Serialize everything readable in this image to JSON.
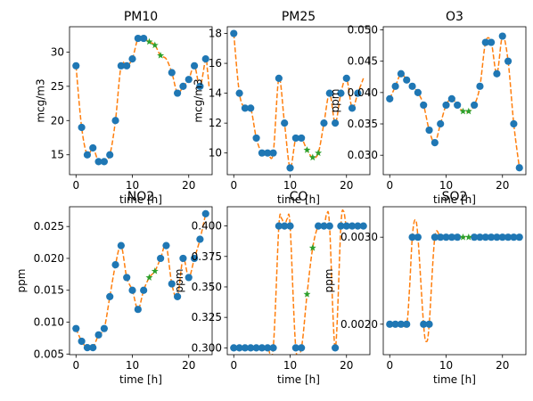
{
  "figure": {
    "layout": "2x3 grid of subplots"
  },
  "style": {
    "observed_color": "#1f77b4",
    "interp_color": "#ff7f0e",
    "imputed_color": "#2ca02c"
  },
  "chart_data": [
    {
      "type": "scatter",
      "title": "PM10",
      "xlabel": "time [h]",
      "ylabel": "mcg/m3",
      "xlim": [
        -1.15,
        24.15
      ],
      "ylim": [
        12.1,
        33.7
      ],
      "xticks": [
        0,
        10,
        20
      ],
      "yticks": [
        15,
        20,
        25,
        30
      ],
      "ytick_labels": [
        "15",
        "20",
        "25",
        "30"
      ],
      "observed": {
        "x": [
          0,
          1,
          2,
          3,
          4,
          5,
          6,
          7,
          8,
          9,
          10,
          11,
          12,
          17,
          18,
          19,
          20,
          21,
          22,
          23
        ],
        "y": [
          28,
          19,
          15,
          16,
          14,
          14,
          15,
          20,
          28,
          28,
          29,
          32,
          32,
          27,
          24,
          25,
          26,
          28,
          25,
          29
        ]
      },
      "imputed": {
        "x": [
          13,
          14,
          15
        ],
        "y": [
          31.5,
          31,
          29.5
        ]
      },
      "interpolated": {
        "x": [
          0,
          1,
          2,
          3,
          4,
          5,
          6,
          7,
          8,
          9,
          10,
          11,
          12,
          13,
          14,
          15,
          16,
          17,
          18,
          19,
          20,
          21,
          22,
          23,
          23.3,
          23.6
        ],
        "y": [
          28,
          19,
          15,
          16,
          14,
          14,
          15,
          20,
          28,
          28,
          29,
          32,
          32,
          31.5,
          31,
          29.5,
          29,
          27,
          24,
          25,
          26,
          28,
          25,
          29,
          27.5,
          25
        ]
      }
    },
    {
      "type": "scatter",
      "title": "PM25",
      "xlabel": "time [h]",
      "ylabel": "mcg/m3",
      "xlim": [
        -1.15,
        24.15
      ],
      "ylim": [
        8.55,
        18.45
      ],
      "xticks": [
        0,
        10,
        20
      ],
      "yticks": [
        10,
        12,
        14,
        16,
        18
      ],
      "ytick_labels": [
        "10",
        "12",
        "14",
        "16",
        "18"
      ],
      "observed": {
        "x": [
          0,
          1,
          2,
          3,
          4,
          5,
          6,
          7,
          8,
          9,
          10,
          11,
          12,
          16,
          17,
          18,
          19,
          20,
          21,
          22
        ],
        "y": [
          18,
          14,
          13,
          13,
          11,
          10,
          10,
          10,
          15,
          12,
          9,
          11,
          11,
          12,
          14,
          12,
          14,
          15,
          13,
          14
        ]
      },
      "imputed": {
        "x": [
          13,
          14,
          15
        ],
        "y": [
          10.2,
          9.7,
          10
        ]
      },
      "interpolated": {
        "x": [
          0,
          1,
          2,
          3,
          4,
          5,
          6,
          7,
          8,
          9,
          10,
          11,
          12,
          13,
          14,
          15,
          16,
          17,
          18,
          19,
          20,
          21,
          22,
          23
        ],
        "y": [
          18,
          14,
          13,
          13,
          11,
          10,
          10,
          10,
          15,
          12,
          9,
          11,
          11,
          10.2,
          9.7,
          10,
          12,
          14,
          12,
          14,
          15,
          13,
          14,
          15
        ]
      }
    },
    {
      "type": "scatter",
      "title": "O3",
      "xlabel": "time [h]",
      "ylabel": "ppm",
      "xlim": [
        -1.15,
        24.15
      ],
      "ylim": [
        0.0269,
        0.0505
      ],
      "xticks": [
        0,
        10,
        20
      ],
      "yticks": [
        0.03,
        0.035,
        0.04,
        0.045,
        0.05
      ],
      "ytick_labels": [
        "0.030",
        "0.035",
        "0.040",
        "0.045",
        "0.050"
      ],
      "observed": {
        "x": [
          0,
          1,
          2,
          3,
          4,
          5,
          6,
          7,
          8,
          9,
          10,
          11,
          12,
          15,
          16,
          17,
          18,
          19,
          20,
          21,
          22,
          23
        ],
        "y": [
          0.039,
          0.041,
          0.043,
          0.042,
          0.041,
          0.04,
          0.038,
          0.034,
          0.032,
          0.035,
          0.038,
          0.039,
          0.038,
          0.038,
          0.041,
          0.048,
          0.048,
          0.043,
          0.049,
          0.045,
          0.035,
          0.028
        ]
      },
      "imputed": {
        "x": [
          13,
          14
        ],
        "y": [
          0.037,
          0.037
        ]
      },
      "interpolated": {
        "x": [
          0,
          1,
          2,
          3,
          4,
          5,
          6,
          7,
          8,
          9,
          10,
          11,
          12,
          13,
          14,
          15,
          16,
          17,
          18,
          19,
          20,
          21,
          22,
          23
        ],
        "y": [
          0.039,
          0.041,
          0.043,
          0.042,
          0.041,
          0.04,
          0.038,
          0.034,
          0.032,
          0.035,
          0.038,
          0.039,
          0.038,
          0.037,
          0.037,
          0.038,
          0.041,
          0.048,
          0.048,
          0.043,
          0.049,
          0.045,
          0.035,
          0.028
        ]
      }
    },
    {
      "type": "scatter",
      "title": "NO2",
      "xlabel": "time [h]",
      "ylabel": "ppm",
      "xlim": [
        -1.15,
        24.15
      ],
      "ylim": [
        0.0049,
        0.0281
      ],
      "xticks": [
        0,
        10,
        20
      ],
      "yticks": [
        0.005,
        0.01,
        0.015,
        0.02,
        0.025
      ],
      "ytick_labels": [
        "0.005",
        "0.010",
        "0.015",
        "0.020",
        "0.025"
      ],
      "observed": {
        "x": [
          0,
          1,
          2,
          3,
          4,
          5,
          6,
          7,
          8,
          9,
          10,
          11,
          12,
          15,
          16,
          17,
          18,
          19,
          20,
          21,
          22,
          23
        ],
        "y": [
          0.009,
          0.007,
          0.006,
          0.006,
          0.008,
          0.009,
          0.014,
          0.019,
          0.022,
          0.017,
          0.015,
          0.012,
          0.015,
          0.02,
          0.022,
          0.016,
          0.014,
          0.02,
          0.017,
          0.02,
          0.023,
          0.027
        ]
      },
      "imputed": {
        "x": [
          13,
          14
        ],
        "y": [
          0.017,
          0.018
        ]
      },
      "interpolated": {
        "x": [
          0,
          1,
          2,
          3,
          4,
          5,
          6,
          7,
          8,
          9,
          10,
          11,
          12,
          13,
          14,
          15,
          16,
          17,
          18,
          19,
          20,
          21,
          22,
          23
        ],
        "y": [
          0.009,
          0.007,
          0.006,
          0.006,
          0.008,
          0.009,
          0.014,
          0.019,
          0.022,
          0.017,
          0.015,
          0.012,
          0.015,
          0.017,
          0.018,
          0.02,
          0.022,
          0.016,
          0.014,
          0.02,
          0.017,
          0.02,
          0.023,
          0.027
        ]
      }
    },
    {
      "type": "scatter",
      "title": "CO",
      "xlabel": "time [h]",
      "ylabel": "ppm",
      "xlim": [
        -1.15,
        24.15
      ],
      "ylim": [
        0.2944,
        0.4158
      ],
      "xticks": [
        0,
        10,
        20
      ],
      "yticks": [
        0.3,
        0.325,
        0.35,
        0.375,
        0.4
      ],
      "ytick_labels": [
        "0.300",
        "0.325",
        "0.350",
        "0.375",
        "0.400"
      ],
      "observed": {
        "x": [
          0,
          1,
          2,
          3,
          4,
          5,
          6,
          7,
          8,
          9,
          10,
          11,
          12,
          15,
          16,
          17,
          18,
          19,
          20,
          21,
          22,
          23
        ],
        "y": [
          0.3,
          0.3,
          0.3,
          0.3,
          0.3,
          0.3,
          0.3,
          0.3,
          0.4,
          0.4,
          0.4,
          0.3,
          0.3,
          0.4,
          0.4,
          0.4,
          0.3,
          0.4,
          0.4,
          0.4,
          0.4,
          0.4
        ]
      },
      "imputed": {
        "x": [
          13,
          14
        ],
        "y": [
          0.344,
          0.382
        ]
      },
      "interpolated": {
        "x": [
          0,
          1,
          2,
          3,
          4,
          5,
          6,
          7,
          8,
          8.5,
          9,
          9.5,
          10,
          11,
          12,
          13,
          14,
          15,
          16,
          16.5,
          17,
          18,
          19,
          19.5,
          20,
          21,
          22,
          23
        ],
        "y": [
          0.3,
          0.3,
          0.3,
          0.3,
          0.3,
          0.3,
          0.3,
          0.3,
          0.4,
          0.406,
          0.4,
          0.406,
          0.4,
          0.3,
          0.3,
          0.344,
          0.382,
          0.4,
          0.4,
          0.41,
          0.4,
          0.3,
          0.4,
          0.412,
          0.4,
          0.4,
          0.4,
          0.4
        ]
      }
    },
    {
      "type": "scatter",
      "title": "SO2",
      "xlabel": "time [h]",
      "ylabel": "ppm",
      "xlim": [
        -1.15,
        24.15
      ],
      "ylim": [
        0.00165,
        0.00335
      ],
      "xticks": [
        0,
        10,
        20
      ],
      "yticks": [
        0.002,
        0.003
      ],
      "ytick_labels": [
        "0.0020",
        "0.0030"
      ],
      "observed": {
        "x": [
          0,
          1,
          2,
          3,
          4,
          5,
          6,
          7,
          8,
          9,
          10,
          11,
          12,
          15,
          16,
          17,
          18,
          19,
          20,
          21,
          22,
          23
        ],
        "y": [
          0.002,
          0.002,
          0.002,
          0.002,
          0.003,
          0.003,
          0.002,
          0.002,
          0.003,
          0.003,
          0.003,
          0.003,
          0.003,
          0.003,
          0.003,
          0.003,
          0.003,
          0.003,
          0.003,
          0.003,
          0.003,
          0.003
        ]
      },
      "imputed": {
        "x": [
          13,
          14
        ],
        "y": [
          0.003,
          0.003
        ]
      },
      "interpolated": {
        "x": [
          0,
          1,
          2,
          3,
          3.5,
          4,
          4.5,
          5,
          6,
          6.5,
          7,
          8,
          9,
          10,
          11,
          12,
          13,
          14,
          15,
          16,
          17,
          18,
          19,
          20,
          21,
          22,
          23
        ],
        "y": [
          0.002,
          0.002,
          0.002,
          0.002,
          0.0024,
          0.003,
          0.0032,
          0.003,
          0.002,
          0.0018,
          0.002,
          0.003,
          0.003,
          0.003,
          0.003,
          0.003,
          0.003,
          0.003,
          0.003,
          0.003,
          0.003,
          0.003,
          0.003,
          0.003,
          0.003,
          0.003,
          0.003
        ]
      }
    }
  ]
}
